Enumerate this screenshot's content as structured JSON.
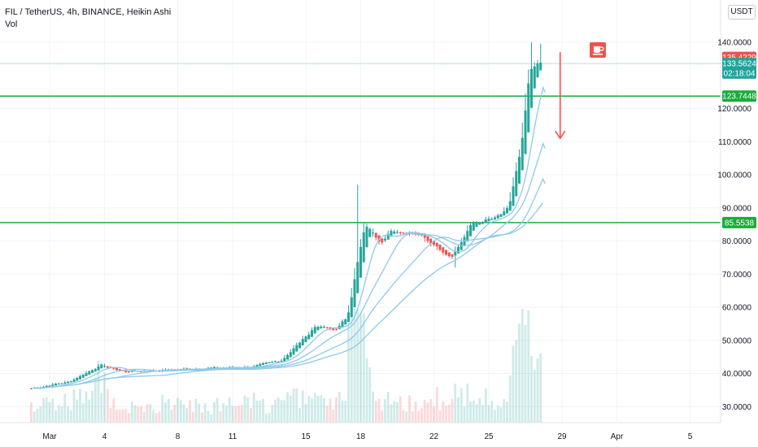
{
  "legend": {
    "title": "FIL / TetherUS, 4h, BINANCE, Heikin Ashi",
    "vol": "Vol"
  },
  "currency_button": "USDT",
  "colors": {
    "up": "#26a69a",
    "down": "#ef5350",
    "ma": "#90c8ec",
    "hline": "#1aab3b",
    "red_label": "#ef5350",
    "teal_label": "#22a39a",
    "green_label": "#1aab3b"
  },
  "chart_data": {
    "type": "candlestick",
    "x_ticks": [
      {
        "label": "Mar",
        "day": 1
      },
      {
        "label": "4",
        "day": 4
      },
      {
        "label": "8",
        "day": 8
      },
      {
        "label": "11",
        "day": 11
      },
      {
        "label": "15",
        "day": 15
      },
      {
        "label": "18",
        "day": 18
      },
      {
        "label": "22",
        "day": 22
      },
      {
        "label": "25",
        "day": 25
      },
      {
        "label": "29",
        "day": 29
      },
      {
        "label": "Apr",
        "day": 32
      },
      {
        "label": "5",
        "day": 36
      }
    ],
    "y_ticks": [
      "30.0000",
      "40.0000",
      "50.0000",
      "60.0000",
      "70.0000",
      "80.0000",
      "90.0000",
      "100.0000",
      "110.0000",
      "120.0000",
      "140.0000"
    ],
    "ylim": [
      25,
      150
    ],
    "horizontal_lines": [
      123.7448,
      85.5538
    ],
    "price_labels": [
      {
        "value": "135.4229",
        "price": 135.4229,
        "style": "red"
      },
      {
        "value": "133.5624",
        "price": 133.5624,
        "style": "teal"
      },
      {
        "value": "02:18:04",
        "price": 130.7,
        "style": "teal"
      },
      {
        "value": "123.7448",
        "price": 123.7448,
        "style": "green"
      },
      {
        "value": "85.5538",
        "price": 85.5538,
        "style": "green"
      }
    ],
    "current_price_line": 133.5624,
    "projection_arrow": {
      "from_day": 28.9,
      "from_price": 137,
      "to_day": 28.9,
      "to_price": 111
    },
    "waypoints": [
      [
        0,
        35.5
      ],
      [
        2,
        37.5
      ],
      [
        3.7,
        42.5
      ],
      [
        5,
        40.5
      ],
      [
        9,
        41.5
      ],
      [
        12,
        42
      ],
      [
        13.6,
        44
      ],
      [
        14.8,
        50.5
      ],
      [
        15.5,
        54.5
      ],
      [
        16.5,
        53
      ],
      [
        17.2,
        57
      ],
      [
        17.8,
        75
      ],
      [
        18.2,
        85
      ],
      [
        19,
        80
      ],
      [
        19.7,
        83
      ],
      [
        21,
        82.5
      ],
      [
        22,
        79
      ],
      [
        22.8,
        75
      ],
      [
        23.3,
        78.5
      ],
      [
        24,
        85
      ],
      [
        25,
        87
      ],
      [
        26,
        90
      ],
      [
        26.7,
        108
      ],
      [
        27.1,
        130
      ],
      [
        27.5,
        133
      ],
      [
        27.9,
        133.5
      ]
    ],
    "series": [
      {
        "name": "",
        "type": "volume"
      },
      {
        "name": "",
        "type": "moving averages",
        "count": 4
      }
    ]
  }
}
